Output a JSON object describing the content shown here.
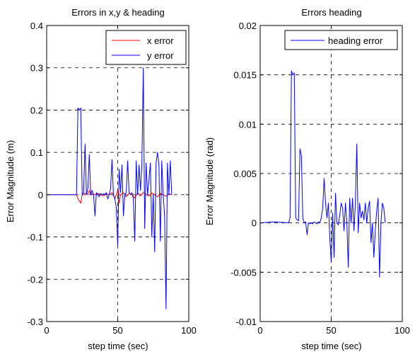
{
  "chart_data": [
    {
      "type": "line",
      "title": "Errors in x,y & heading",
      "xlabel": "step time (sec)",
      "ylabel": "Error Magnitude (m)",
      "xlim": [
        0,
        100
      ],
      "ylim": [
        -0.3,
        0.4
      ],
      "xticks": [
        "0",
        "50",
        "100"
      ],
      "yticks": [
        "0.4",
        "0.3",
        "0.2",
        "0.1",
        "0",
        "-0.1",
        "-0.2",
        "-0.3"
      ],
      "grid": "dashed",
      "legend_position": "top-right",
      "series": [
        {
          "name": "x error",
          "color": "#ff0000",
          "x": [
            0,
            21,
            22,
            23,
            24,
            25,
            26,
            27,
            28,
            29,
            30,
            31,
            32,
            34,
            36,
            38,
            40,
            42,
            44,
            46,
            48,
            49,
            50,
            51,
            52,
            54,
            56,
            58,
            60,
            62,
            64,
            66,
            68,
            70,
            72,
            74,
            76,
            78,
            80,
            82,
            84,
            86,
            88
          ],
          "y": [
            0,
            0,
            -0.01,
            -0.015,
            -0.02,
            0,
            0.005,
            0,
            0.005,
            0,
            0.01,
            0,
            0.002,
            0,
            0.003,
            0,
            -0.003,
            0.002,
            0,
            0.005,
            -0.01,
            0,
            0.01,
            -0.02,
            0,
            0.005,
            -0.005,
            0.003,
            0,
            -0.008,
            0.005,
            -0.003,
            0.005,
            0,
            -0.003,
            0.004,
            0,
            -0.005,
            0.003,
            0,
            -0.004,
            0.002,
            0
          ]
        },
        {
          "name": "y error",
          "color": "#0000ff",
          "x": [
            0,
            21,
            22,
            23,
            24,
            25,
            26,
            27,
            28,
            29,
            30,
            31,
            32,
            33,
            34,
            35,
            36,
            37,
            38,
            39,
            40,
            41,
            42,
            43,
            44,
            45,
            46,
            47,
            48,
            49,
            50,
            51,
            52,
            53,
            54,
            55,
            56,
            57,
            58,
            59,
            60,
            61,
            62,
            63,
            64,
            65,
            66,
            67,
            68,
            69,
            70,
            71,
            72,
            73,
            74,
            75,
            76,
            77,
            78,
            79,
            80,
            81,
            82,
            83,
            84,
            85,
            86,
            87,
            88
          ],
          "y": [
            0,
            0,
            0.205,
            0.2,
            0.205,
            0,
            0.005,
            0.12,
            0,
            0.015,
            0.095,
            0,
            0.01,
            0,
            -0.05,
            0.005,
            0,
            -0.005,
            0.003,
            0,
            0.002,
            0,
            0.005,
            -0.01,
            0,
            0.015,
            0.083,
            0,
            -0.01,
            -0.03,
            -0.12,
            0.06,
            0.005,
            0.07,
            -0.05,
            0,
            0.005,
            0.08,
            0.005,
            0,
            0.005,
            -0.01,
            -0.11,
            0.08,
            0,
            0.07,
            0.01,
            0.07,
            0.3,
            -0.08,
            0.075,
            0,
            0.035,
            0.075,
            -0.1,
            0,
            -0.135,
            0.075,
            0.1,
            0.07,
            -0.11,
            0.08,
            0,
            -0.05,
            -0.27,
            0.075,
            0,
            0.08,
            0
          ]
        }
      ]
    },
    {
      "type": "line",
      "title": "Errors heading",
      "xlabel": "step time (sec)",
      "ylabel": "Error Magnitude (rad)",
      "xlim": [
        0,
        100
      ],
      "ylim": [
        -0.01,
        0.02
      ],
      "xticks": [
        "0",
        "50",
        "100"
      ],
      "yticks": [
        "0.02",
        "0.015",
        "0.01",
        "0.005",
        "0",
        "-0.005",
        "-0.01"
      ],
      "grid": "dashed",
      "legend_position": "top-right",
      "series": [
        {
          "name": "heading error",
          "color": "#0000ff",
          "x": [
            0,
            10,
            20,
            21,
            22,
            23,
            24,
            25,
            26,
            27,
            28,
            29,
            30,
            31,
            32,
            33,
            34,
            35,
            36,
            37,
            38,
            39,
            40,
            41,
            42,
            43,
            44,
            45,
            46,
            47,
            48,
            49,
            50,
            51,
            52,
            53,
            54,
            55,
            56,
            57,
            58,
            59,
            60,
            61,
            62,
            63,
            64,
            65,
            66,
            67,
            68,
            69,
            70,
            71,
            72,
            73,
            74,
            75,
            76,
            77,
            78,
            79,
            80,
            81,
            82,
            83,
            84,
            85,
            86,
            87,
            88
          ],
          "y": [
            0,
            0.0001,
            0,
            0.0005,
            0.0154,
            0.015,
            0.0152,
            0.0005,
            0.0003,
            0.0002,
            0.0075,
            0.0068,
            0.0005,
            0,
            0.0001,
            -0.0012,
            0,
            -0.0001,
            0,
            -0.0001,
            0.0001,
            0,
            -0.0001,
            0.0001,
            0,
            0.0005,
            0.0015,
            0.0045,
            0.002,
            0.0005,
            0.002,
            -0.0015,
            -0.004,
            0.001,
            -0.0035,
            0.003,
            0,
            -0.0002,
            0.0008,
            0.002,
            0.0015,
            -0.0008,
            0.002,
            0,
            -0.0045,
            0.0025,
            0,
            0.0025,
            -0.0008,
            0.002,
            0.008,
            -0.001,
            0.002,
            0.0005,
            0.0012,
            0.0003,
            0.002,
            0,
            0.0015,
            0.0022,
            -0.002,
            0,
            -0.0035,
            -0.0008,
            0.0012,
            0.0025,
            -0.0055,
            0,
            0.002,
            0.0015,
            0
          ]
        }
      ]
    }
  ]
}
